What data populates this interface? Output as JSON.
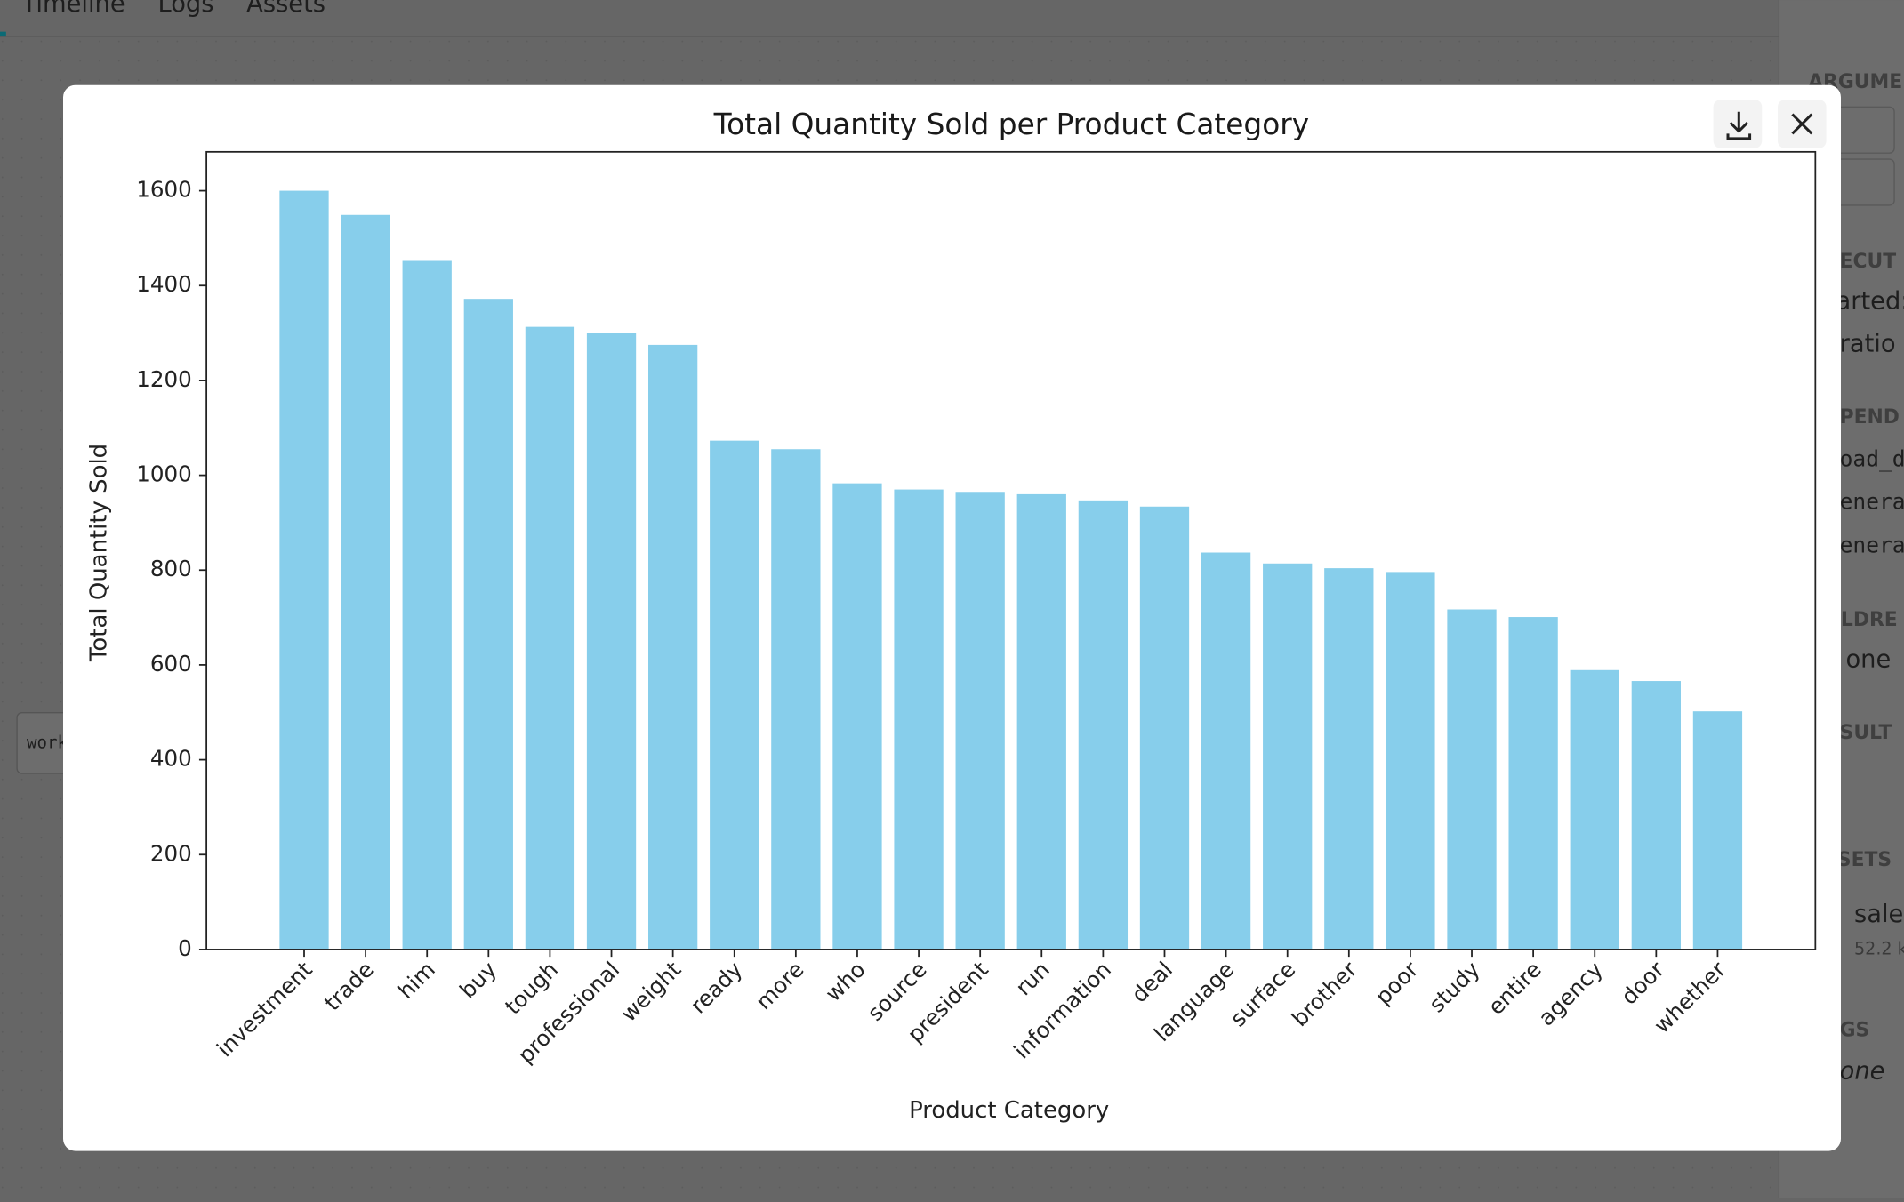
{
  "background": {
    "tabs": [
      "Timeline",
      "Logs",
      "Assets"
    ],
    "side_labels": [
      "ARGUME",
      "ECUT",
      "arted:",
      "ratio",
      "PEND",
      "oad_d",
      "enera",
      "enera",
      "ILDRE",
      "one",
      "SULT",
      "SETS",
      "sale",
      "52.2 k",
      "GS",
      "one"
    ],
    "node_label": "work"
  },
  "chart_data": {
    "type": "bar",
    "title": "Total Quantity Sold per Product Category",
    "xlabel": "Product Category",
    "ylabel": "Total Quantity Sold",
    "categories": [
      "investment",
      "trade",
      "him",
      "buy",
      "tough",
      "professional",
      "weight",
      "ready",
      "more",
      "who",
      "source",
      "president",
      "run",
      "information",
      "deal",
      "language",
      "surface",
      "brother",
      "poor",
      "study",
      "entire",
      "agency",
      "door",
      "whether"
    ],
    "values": [
      1600,
      1549,
      1452,
      1372,
      1313,
      1300,
      1275,
      1073,
      1055,
      983,
      970,
      965,
      960,
      947,
      934,
      837,
      814,
      804,
      796,
      717,
      701,
      589,
      566,
      502
    ],
    "color": "#87ceeb",
    "ylim": [
      0,
      1682
    ],
    "yticks": [
      0,
      200,
      400,
      600,
      800,
      1000,
      1200,
      1400,
      1600
    ],
    "grid": false
  }
}
